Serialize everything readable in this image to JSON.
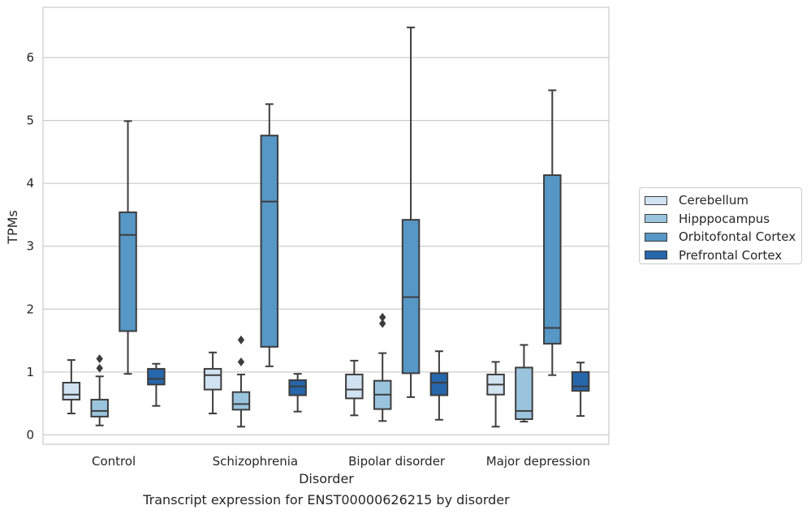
{
  "chart_data": {
    "type": "boxplot",
    "title": "Transcript expression for ENST00000626215 by disorder",
    "xlabel": "Disorder",
    "ylabel": "TPMs",
    "ylim": [
      -0.15,
      6.8
    ],
    "yticks": [
      0,
      1,
      2,
      3,
      4,
      5,
      6
    ],
    "grid": "horizontal",
    "legend_position": "right",
    "categories": [
      "Control",
      "Schizophrenia",
      "Bipolar disorder",
      "Major depression"
    ],
    "series": [
      {
        "name": "Cerebellum",
        "color": "#d1e2f1",
        "boxes": [
          {
            "whislo": 0.34,
            "q1": 0.56,
            "med": 0.64,
            "q3": 0.83,
            "whishi": 1.19,
            "fliers": []
          },
          {
            "whislo": 0.34,
            "q1": 0.72,
            "med": 0.95,
            "q3": 1.05,
            "whishi": 1.31,
            "fliers": []
          },
          {
            "whislo": 0.31,
            "q1": 0.58,
            "med": 0.72,
            "q3": 0.96,
            "whishi": 1.18,
            "fliers": []
          },
          {
            "whislo": 0.13,
            "q1": 0.64,
            "med": 0.8,
            "q3": 0.96,
            "whishi": 1.16,
            "fliers": []
          }
        ]
      },
      {
        "name": "Hipppocampus",
        "color": "#9ac4de",
        "boxes": [
          {
            "whislo": 0.15,
            "q1": 0.29,
            "med": 0.38,
            "q3": 0.56,
            "whishi": 0.93,
            "fliers": [
              1.06,
              1.21
            ]
          },
          {
            "whislo": 0.13,
            "q1": 0.4,
            "med": 0.49,
            "q3": 0.68,
            "whishi": 0.96,
            "fliers": [
              1.16,
              1.51
            ]
          },
          {
            "whislo": 0.22,
            "q1": 0.41,
            "med": 0.64,
            "q3": 0.86,
            "whishi": 1.3,
            "fliers": [
              1.77,
              1.87
            ]
          },
          {
            "whislo": 0.21,
            "q1": 0.25,
            "med": 0.38,
            "q3": 1.07,
            "whishi": 1.43,
            "fliers": []
          }
        ]
      },
      {
        "name": "Orbitofontal Cortex",
        "color": "#5697c6",
        "boxes": [
          {
            "whislo": 0.97,
            "q1": 1.65,
            "med": 3.18,
            "q3": 3.54,
            "whishi": 4.99,
            "fliers": []
          },
          {
            "whislo": 1.09,
            "q1": 1.4,
            "med": 3.71,
            "q3": 4.76,
            "whishi": 5.26,
            "fliers": []
          },
          {
            "whislo": 0.6,
            "q1": 0.98,
            "med": 2.19,
            "q3": 3.42,
            "whishi": 6.48,
            "fliers": []
          },
          {
            "whislo": 0.95,
            "q1": 1.45,
            "med": 1.7,
            "q3": 4.13,
            "whishi": 5.48,
            "fliers": []
          }
        ]
      },
      {
        "name": "Prefrontal Cortex",
        "color": "#2666ab",
        "boxes": [
          {
            "whislo": 0.46,
            "q1": 0.8,
            "med": 0.89,
            "q3": 1.05,
            "whishi": 1.13,
            "fliers": []
          },
          {
            "whislo": 0.37,
            "q1": 0.63,
            "med": 0.77,
            "q3": 0.87,
            "whishi": 0.97,
            "fliers": []
          },
          {
            "whislo": 0.24,
            "q1": 0.63,
            "med": 0.83,
            "q3": 0.98,
            "whishi": 1.33,
            "fliers": []
          },
          {
            "whislo": 0.3,
            "q1": 0.7,
            "med": 0.77,
            "q3": 1.0,
            "whishi": 1.15,
            "fliers": []
          }
        ]
      }
    ]
  }
}
